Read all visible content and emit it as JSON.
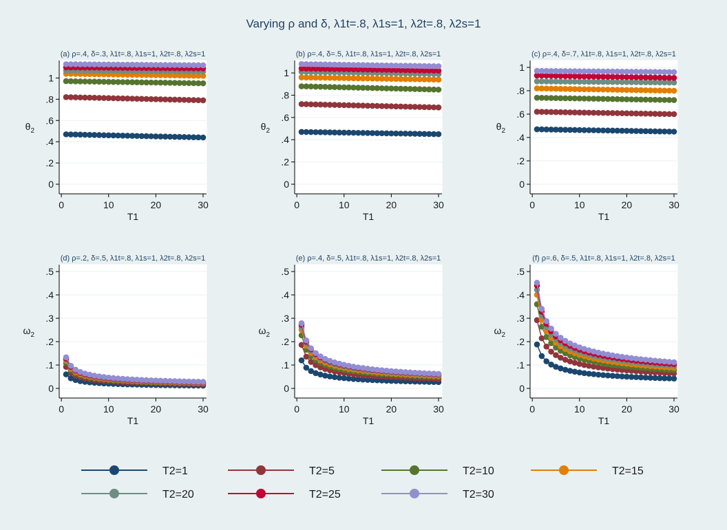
{
  "figure": {
    "title": "Varying ρ and δ, λ1t=.8, λ1s=1, λ2t=.8, λ2s=1"
  },
  "legend": [
    {
      "label": "T2=1",
      "color": "#1a476f"
    },
    {
      "label": "T2=5",
      "color": "#90353b"
    },
    {
      "label": "T2=10",
      "color": "#55752f"
    },
    {
      "label": "T2=15",
      "color": "#e37e00"
    },
    {
      "label": "T2=20",
      "color": "#6e8e84"
    },
    {
      "label": "T2=25",
      "color": "#c10534"
    },
    {
      "label": "T2=30",
      "color": "#938dd2"
    }
  ],
  "chart_data": [
    {
      "type": "scatter",
      "subtitle": "(a) ρ=.4, δ=.3, λ1t=.8, λ1s=1, λ2t=.8, λ2s=1",
      "xlabel": "T1",
      "ylabel": "θ2",
      "xlim": [
        1,
        30
      ],
      "ylim": [
        0,
        1.1
      ],
      "xticks": [
        0,
        10,
        20,
        30
      ],
      "yticks": [
        0,
        0.2,
        0.4,
        0.6,
        0.8,
        1
      ],
      "ytick_labels": [
        "0",
        ".2",
        ".4",
        ".6",
        ".8",
        "1"
      ],
      "series": [
        {
          "name": "T2=1",
          "start": 0.47,
          "end": 0.44,
          "shape": "linear"
        },
        {
          "name": "T2=5",
          "start": 0.82,
          "end": 0.79,
          "shape": "linear"
        },
        {
          "name": "T2=10",
          "start": 0.97,
          "end": 0.95,
          "shape": "linear"
        },
        {
          "name": "T2=15",
          "start": 1.04,
          "end": 1.02,
          "shape": "linear"
        },
        {
          "name": "T2=20",
          "start": 1.07,
          "end": 1.06,
          "shape": "linear"
        },
        {
          "name": "T2=25",
          "start": 1.1,
          "end": 1.09,
          "shape": "linear"
        },
        {
          "name": "T2=30",
          "start": 1.13,
          "end": 1.12,
          "shape": "linear"
        }
      ]
    },
    {
      "type": "scatter",
      "subtitle": "(b) ρ=.4, δ=.5, λ1t=.8, λ1s=1, λ2t=.8, λ2s=1",
      "xlabel": "T1",
      "ylabel": "θ2",
      "xlim": [
        1,
        30
      ],
      "ylim": [
        0,
        1.05
      ],
      "xticks": [
        0,
        10,
        20,
        30
      ],
      "yticks": [
        0,
        0.2,
        0.4,
        0.6,
        0.8,
        1
      ],
      "ytick_labels": [
        "0",
        ".2",
        ".4",
        ".6",
        ".8",
        "1"
      ],
      "series": [
        {
          "name": "T2=1",
          "start": 0.47,
          "end": 0.45,
          "shape": "linear"
        },
        {
          "name": "T2=5",
          "start": 0.72,
          "end": 0.69,
          "shape": "linear"
        },
        {
          "name": "T2=10",
          "start": 0.88,
          "end": 0.85,
          "shape": "linear"
        },
        {
          "name": "T2=15",
          "start": 0.96,
          "end": 0.94,
          "shape": "linear"
        },
        {
          "name": "T2=20",
          "start": 1.01,
          "end": 0.99,
          "shape": "linear"
        },
        {
          "name": "T2=25",
          "start": 1.04,
          "end": 1.02,
          "shape": "linear"
        },
        {
          "name": "T2=30",
          "start": 1.08,
          "end": 1.06,
          "shape": "linear"
        }
      ]
    },
    {
      "type": "scatter",
      "subtitle": "(c) ρ=.4, δ=.7, λ1t=.8, λ1s=1, λ2t=.8, λ2s=1",
      "xlabel": "T1",
      "ylabel": "θ2",
      "xlim": [
        1,
        30
      ],
      "ylim": [
        0,
        1
      ],
      "xticks": [
        0,
        10,
        20,
        30
      ],
      "yticks": [
        0,
        0.2,
        0.4,
        0.6,
        0.8,
        1
      ],
      "ytick_labels": [
        "0",
        ".2",
        ".4",
        ".6",
        ".8",
        "1"
      ],
      "series": [
        {
          "name": "T2=1",
          "start": 0.47,
          "end": 0.45,
          "shape": "linear"
        },
        {
          "name": "T2=5",
          "start": 0.62,
          "end": 0.6,
          "shape": "linear"
        },
        {
          "name": "T2=10",
          "start": 0.74,
          "end": 0.72,
          "shape": "linear"
        },
        {
          "name": "T2=15",
          "start": 0.82,
          "end": 0.8,
          "shape": "linear"
        },
        {
          "name": "T2=20",
          "start": 0.88,
          "end": 0.87,
          "shape": "linear"
        },
        {
          "name": "T2=25",
          "start": 0.93,
          "end": 0.91,
          "shape": "linear"
        },
        {
          "name": "T2=30",
          "start": 0.97,
          "end": 0.96,
          "shape": "linear"
        }
      ]
    },
    {
      "type": "scatter",
      "subtitle": "(d) ρ=.2, δ=.5, λ1t=.8, λ1s=1, λ2t=.8, λ2s=1",
      "xlabel": "T1",
      "ylabel": "ω2",
      "xlim": [
        1,
        30
      ],
      "ylim": [
        0,
        0.5
      ],
      "xticks": [
        0,
        10,
        20,
        30
      ],
      "yticks": [
        0,
        0.1,
        0.2,
        0.3,
        0.4,
        0.5
      ],
      "ytick_labels": [
        "0",
        ".1",
        ".2",
        ".3",
        ".4",
        ".5"
      ],
      "series": [
        {
          "name": "T2=1",
          "start": 0.06,
          "end": 0.012,
          "shape": "decay"
        },
        {
          "name": "T2=5",
          "start": 0.092,
          "end": 0.018,
          "shape": "decay"
        },
        {
          "name": "T2=10",
          "start": 0.108,
          "end": 0.021,
          "shape": "decay"
        },
        {
          "name": "T2=15",
          "start": 0.117,
          "end": 0.023,
          "shape": "decay"
        },
        {
          "name": "T2=20",
          "start": 0.123,
          "end": 0.025,
          "shape": "decay"
        },
        {
          "name": "T2=25",
          "start": 0.128,
          "end": 0.026,
          "shape": "decay"
        },
        {
          "name": "T2=30",
          "start": 0.133,
          "end": 0.028,
          "shape": "decay"
        }
      ]
    },
    {
      "type": "scatter",
      "subtitle": "(e) ρ=.4, δ=.5, λ1t=.8, λ1s=1, λ2t=.8, λ2s=1",
      "xlabel": "T1",
      "ylabel": "ω2",
      "xlim": [
        1,
        30
      ],
      "ylim": [
        0,
        0.5
      ],
      "xticks": [
        0,
        10,
        20,
        30
      ],
      "yticks": [
        0,
        0.1,
        0.2,
        0.3,
        0.4,
        0.5
      ],
      "ytick_labels": [
        "0",
        ".1",
        ".2",
        ".3",
        ".4",
        ".5"
      ],
      "series": [
        {
          "name": "T2=1",
          "start": 0.12,
          "end": 0.027,
          "shape": "decay"
        },
        {
          "name": "T2=5",
          "start": 0.186,
          "end": 0.04,
          "shape": "decay"
        },
        {
          "name": "T2=10",
          "start": 0.227,
          "end": 0.048,
          "shape": "decay"
        },
        {
          "name": "T2=15",
          "start": 0.25,
          "end": 0.053,
          "shape": "decay"
        },
        {
          "name": "T2=20",
          "start": 0.262,
          "end": 0.057,
          "shape": "decay"
        },
        {
          "name": "T2=25",
          "start": 0.272,
          "end": 0.06,
          "shape": "decay"
        },
        {
          "name": "T2=30",
          "start": 0.279,
          "end": 0.062,
          "shape": "decay"
        }
      ]
    },
    {
      "type": "scatter",
      "subtitle": "(f) ρ=.6, δ=.5, λ1t=.8, λ1s=1, λ2t=.8, λ2s=1",
      "xlabel": "T1",
      "ylabel": "ω2",
      "xlim": [
        1,
        30
      ],
      "ylim": [
        0,
        0.5
      ],
      "xticks": [
        0,
        10,
        20,
        30
      ],
      "yticks": [
        0,
        0.1,
        0.2,
        0.3,
        0.4,
        0.5
      ],
      "ytick_labels": [
        "0",
        ".1",
        ".2",
        ".3",
        ".4",
        ".5"
      ],
      "series": [
        {
          "name": "T2=1",
          "start": 0.188,
          "end": 0.042,
          "shape": "decay"
        },
        {
          "name": "T2=5",
          "start": 0.292,
          "end": 0.064,
          "shape": "decay"
        },
        {
          "name": "T2=10",
          "start": 0.36,
          "end": 0.078,
          "shape": "decay"
        },
        {
          "name": "T2=15",
          "start": 0.4,
          "end": 0.088,
          "shape": "decay"
        },
        {
          "name": "T2=20",
          "start": 0.422,
          "end": 0.096,
          "shape": "decay"
        },
        {
          "name": "T2=25",
          "start": 0.44,
          "end": 0.104,
          "shape": "decay"
        },
        {
          "name": "T2=30",
          "start": 0.452,
          "end": 0.112,
          "shape": "decay"
        }
      ]
    }
  ]
}
